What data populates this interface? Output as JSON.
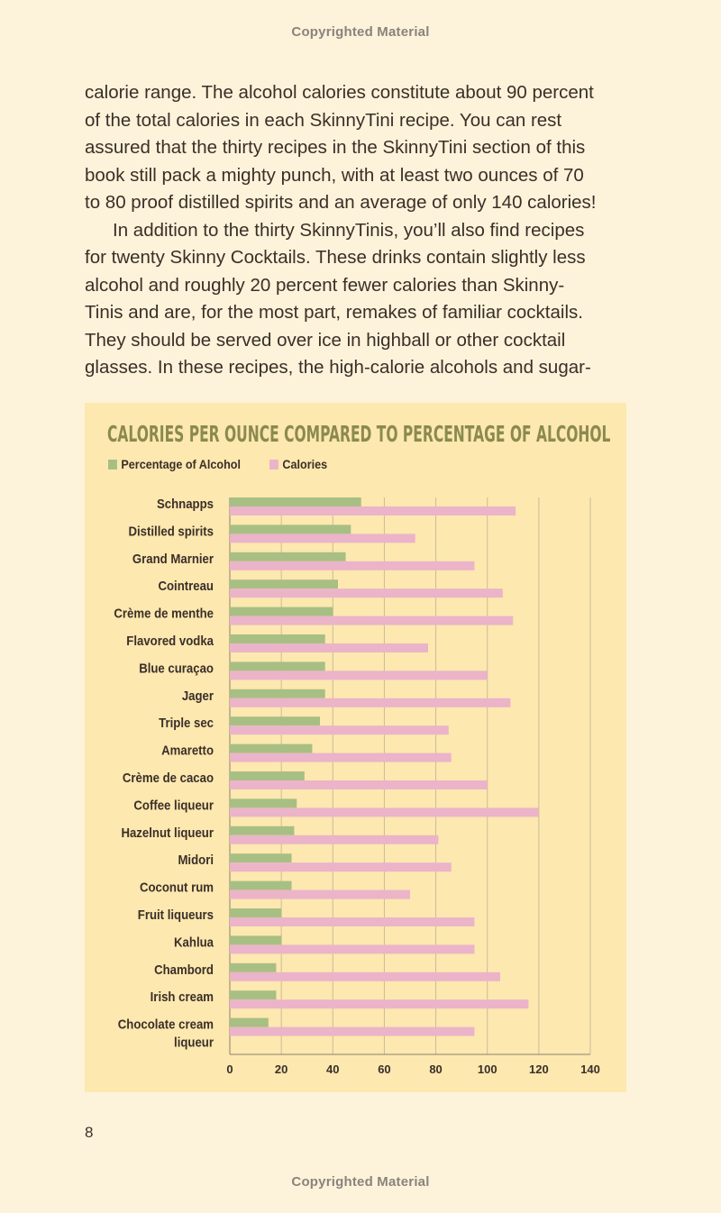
{
  "header": {
    "copyright": "Copyrighted Material"
  },
  "footer": {
    "copyright": "Copyrighted Material",
    "page_number": "8"
  },
  "body": {
    "lines": [
      "calorie range. The alcohol calories constitute about 90 percent",
      "of the total calories in each SkinnyTini recipe. You can rest",
      "assured that the thirty recipes in the SkinnyTini section of this",
      "book still pack a mighty punch, with at least two ounces of 70",
      "to 80 proof distilled spirits and an average of only 140 calories!",
      "In addition to the thirty SkinnyTinis, you’ll also find recipes",
      "for twenty Skinny Cocktails. These drinks contain slightly less",
      "alcohol and roughly 20 percent fewer calories than Skinny-",
      "Tinis and are, for the most part, remakes of familiar cocktails.",
      "They should be served over ice in highball or other cocktail",
      "glasses. In these recipes, the high-calorie alcohols and sugar-"
    ]
  },
  "chart_data": {
    "type": "bar",
    "orientation": "horizontal",
    "title": "CALORIES PER OUNCE COMPARED TO PERCENTAGE OF ALCOHOL",
    "categories": [
      [
        "Schnapps"
      ],
      [
        "Distilled spirits"
      ],
      [
        "Grand Marnier"
      ],
      [
        "Cointreau"
      ],
      [
        "Crème de menthe"
      ],
      [
        "Flavored vodka"
      ],
      [
        "Blue curaçao"
      ],
      [
        "Jager"
      ],
      [
        "Triple sec"
      ],
      [
        "Amaretto"
      ],
      [
        "Crème de cacao"
      ],
      [
        "Coffee liqueur"
      ],
      [
        "Hazelnut liqueur"
      ],
      [
        "Midori"
      ],
      [
        "Coconut rum"
      ],
      [
        "Fruit liqueurs"
      ],
      [
        "Kahlua"
      ],
      [
        "Chambord"
      ],
      [
        "Irish cream"
      ],
      [
        "Chocolate cream",
        "liqueur"
      ]
    ],
    "series": [
      {
        "name": "Percentage of Alcohol",
        "color": "#a8bf83",
        "values": [
          51,
          47,
          45,
          42,
          40,
          37,
          37,
          37,
          35,
          32,
          29,
          26,
          25,
          24,
          24,
          20,
          20,
          18,
          18,
          15
        ]
      },
      {
        "name": "Calories",
        "color": "#ebb4c9",
        "values": [
          111,
          72,
          95,
          106,
          110,
          77,
          100,
          109,
          85,
          86,
          100,
          120,
          81,
          86,
          70,
          95,
          95,
          105,
          116,
          95
        ]
      }
    ],
    "xlim": [
      0,
      140
    ],
    "xticks": [
      "0",
      "20",
      "40",
      "60",
      "80",
      "100",
      "120",
      "140"
    ],
    "grid": true,
    "legend_position": "top-left"
  }
}
